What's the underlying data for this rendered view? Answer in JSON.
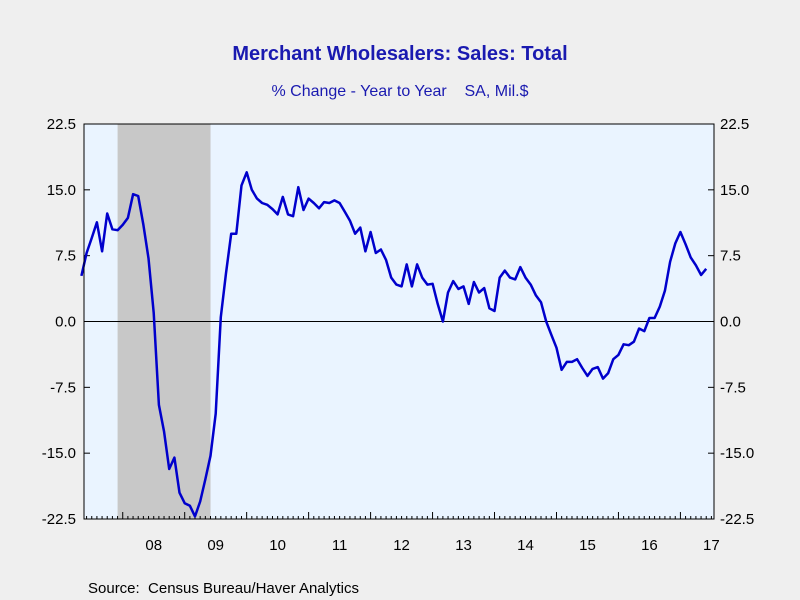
{
  "chart_data": {
    "type": "line",
    "title": "Merchant Wholesalers: Sales: Total",
    "subtitle": "% Change - Year to Year    SA, Mil.$",
    "source": "Source:  Census Bureau/Haver Analytics",
    "ylim": [
      -22.5,
      22.5
    ],
    "yticks": [
      22.5,
      15.0,
      7.5,
      0.0,
      -7.5,
      -15.0,
      -22.5
    ],
    "ytick_labels": [
      "22.5",
      "15.0",
      "7.5",
      "0.0",
      "-7.5",
      "-15.0",
      "-22.5"
    ],
    "xlim": [
      2007.375,
      2017.542
    ],
    "xtick_labels": [
      {
        "label": "08",
        "year": 2008
      },
      {
        "label": "09",
        "year": 2009
      },
      {
        "label": "10",
        "year": 2010
      },
      {
        "label": "11",
        "year": 2011
      },
      {
        "label": "12",
        "year": 2012
      },
      {
        "label": "13",
        "year": 2013
      },
      {
        "label": "14",
        "year": 2014
      },
      {
        "label": "15",
        "year": 2015
      },
      {
        "label": "16",
        "year": 2016
      },
      {
        "label": "17",
        "year": 2017
      }
    ],
    "recession": {
      "start": 2007.917,
      "end": 2009.417
    },
    "grid": false,
    "colors": {
      "line": "#0000cc",
      "plot_bg": "#eaf4ff",
      "recession": "#c8c8c8",
      "title": "#1a1ab0"
    },
    "series": [
      {
        "start": "2007-05",
        "frequency": "monthly",
        "values": [
          5.2,
          7.8,
          9.5,
          11.3,
          8.0,
          12.3,
          10.5,
          10.4,
          11.0,
          11.8,
          14.5,
          14.3,
          11.0,
          7.2,
          1.0,
          -9.5,
          -12.5,
          -16.8,
          -15.5,
          -19.5,
          -20.7,
          -21.0,
          -22.2,
          -20.5,
          -18.0,
          -15.3,
          -10.5,
          0.5,
          5.5,
          10.0,
          10.0,
          15.5,
          17.0,
          15.0,
          14.0,
          13.5,
          13.3,
          12.8,
          12.2,
          14.2,
          12.2,
          12.0,
          15.3,
          12.7,
          14.0,
          13.5,
          12.9,
          13.6,
          13.5,
          13.8,
          13.5,
          12.5,
          11.5,
          10.0,
          10.7,
          8.0,
          10.2,
          7.8,
          8.2,
          7.0,
          5.0,
          4.2,
          4.0,
          6.5,
          4.0,
          6.5,
          5.0,
          4.2,
          4.3,
          2.0,
          0.0,
          3.3,
          4.6,
          3.7,
          4.0,
          2.0,
          4.5,
          3.3,
          3.8,
          1.5,
          1.2,
          5.0,
          5.8,
          5.0,
          4.8,
          6.2,
          5.0,
          4.2,
          3.0,
          2.2,
          0.0,
          -1.5,
          -3.0,
          -5.5,
          -4.6,
          -4.6,
          -4.3,
          -5.3,
          -6.2,
          -5.4,
          -5.2,
          -6.5,
          -5.9,
          -4.3,
          -3.8,
          -2.6,
          -2.7,
          -2.3,
          -0.8,
          -1.1,
          0.4,
          0.4,
          1.7,
          3.5,
          6.8,
          8.9,
          10.2,
          8.8,
          7.3,
          6.4,
          5.3,
          6.0
        ]
      }
    ]
  }
}
